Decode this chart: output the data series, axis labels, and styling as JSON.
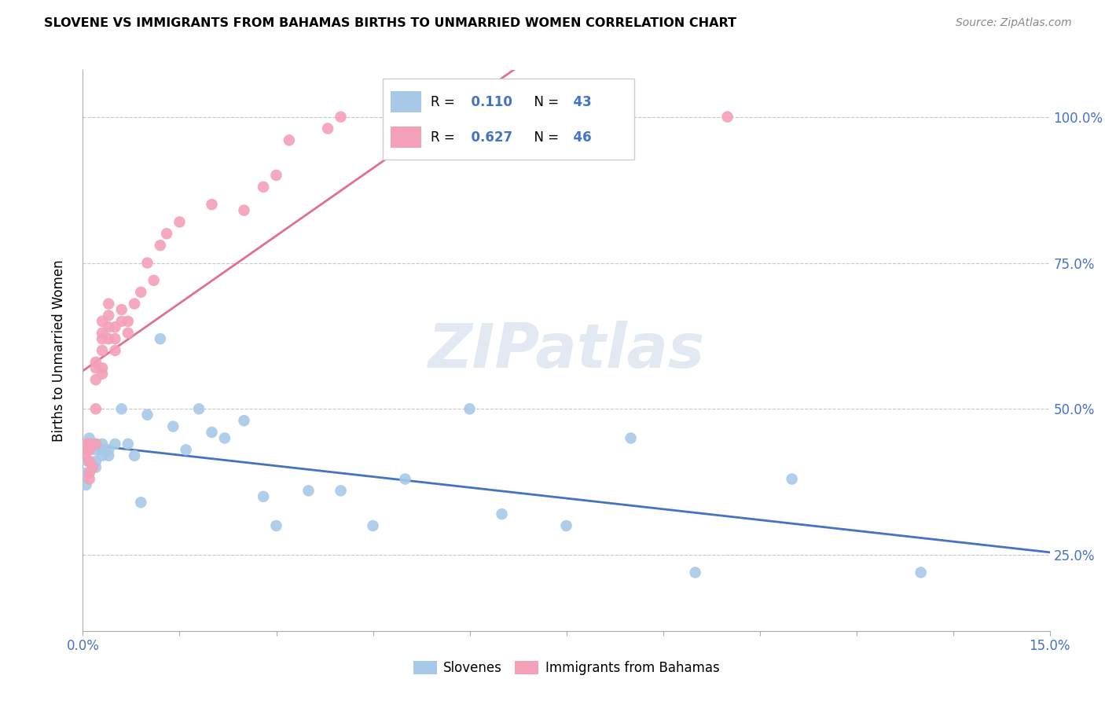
{
  "title": "SLOVENE VS IMMIGRANTS FROM BAHAMAS BIRTHS TO UNMARRIED WOMEN CORRELATION CHART",
  "source": "Source: ZipAtlas.com",
  "ylabel": "Births to Unmarried Women",
  "r_slovene": 0.11,
  "n_slovene": 43,
  "r_bahamas": 0.627,
  "n_bahamas": 46,
  "color_slovene": "#a8c8e8",
  "color_bahamas": "#f4a0b8",
  "line_color_slovene": "#4472c4",
  "line_color_bahamas": "#e07090",
  "legend_label_slovene": "Slovenes",
  "legend_label_bahamas": "Immigrants from Bahamas",
  "xlim": [
    0.0,
    0.15
  ],
  "ylim": [
    0.12,
    1.08
  ],
  "yticks": [
    0.25,
    0.5,
    0.75,
    1.0
  ],
  "ytick_labels": [
    "25.0%",
    "50.0%",
    "75.0%",
    "100.0%"
  ],
  "slovene_x": [
    0.0003,
    0.0005,
    0.0008,
    0.001,
    0.001,
    0.0012,
    0.0015,
    0.0015,
    0.002,
    0.002,
    0.002,
    0.002,
    0.003,
    0.003,
    0.003,
    0.004,
    0.004,
    0.005,
    0.006,
    0.007,
    0.008,
    0.009,
    0.01,
    0.012,
    0.014,
    0.016,
    0.018,
    0.02,
    0.022,
    0.025,
    0.028,
    0.03,
    0.035,
    0.04,
    0.045,
    0.05,
    0.06,
    0.065,
    0.075,
    0.085,
    0.095,
    0.11,
    0.13
  ],
  "slovene_y": [
    0.39,
    0.37,
    0.41,
    0.43,
    0.45,
    0.41,
    0.44,
    0.4,
    0.44,
    0.43,
    0.41,
    0.4,
    0.44,
    0.42,
    0.43,
    0.43,
    0.42,
    0.44,
    0.5,
    0.44,
    0.42,
    0.34,
    0.49,
    0.62,
    0.47,
    0.43,
    0.5,
    0.46,
    0.45,
    0.48,
    0.35,
    0.3,
    0.36,
    0.36,
    0.3,
    0.38,
    0.5,
    0.32,
    0.3,
    0.45,
    0.22,
    0.38,
    0.22
  ],
  "bahamas_x": [
    0.0003,
    0.0005,
    0.0007,
    0.001,
    0.001,
    0.001,
    0.001,
    0.001,
    0.0015,
    0.002,
    0.002,
    0.002,
    0.002,
    0.002,
    0.003,
    0.003,
    0.003,
    0.003,
    0.003,
    0.003,
    0.004,
    0.004,
    0.004,
    0.004,
    0.005,
    0.005,
    0.005,
    0.006,
    0.006,
    0.007,
    0.007,
    0.008,
    0.009,
    0.01,
    0.011,
    0.012,
    0.013,
    0.015,
    0.02,
    0.025,
    0.028,
    0.03,
    0.032,
    0.038,
    0.04,
    0.1
  ],
  "bahamas_y": [
    0.42,
    0.43,
    0.44,
    0.44,
    0.43,
    0.41,
    0.38,
    0.39,
    0.4,
    0.44,
    0.5,
    0.55,
    0.57,
    0.58,
    0.56,
    0.57,
    0.6,
    0.62,
    0.63,
    0.65,
    0.62,
    0.64,
    0.66,
    0.68,
    0.6,
    0.62,
    0.64,
    0.65,
    0.67,
    0.63,
    0.65,
    0.68,
    0.7,
    0.75,
    0.72,
    0.78,
    0.8,
    0.82,
    0.85,
    0.84,
    0.88,
    0.9,
    0.96,
    0.98,
    1.0,
    1.0
  ]
}
